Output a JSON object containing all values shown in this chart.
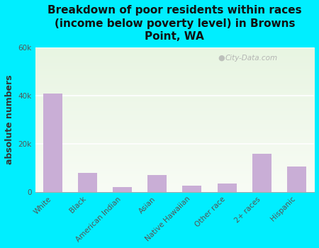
{
  "title": "Breakdown of poor residents within races\n(income below poverty level) in Browns\nPoint, WA",
  "categories": [
    "White",
    "Black",
    "American Indian",
    "Asian",
    "Native Hawaiian",
    "Other race",
    "2+ races",
    "Hispanic"
  ],
  "values": [
    41000,
    8000,
    2000,
    7000,
    2500,
    3500,
    16000,
    10500
  ],
  "bar_color": "#c9aed6",
  "ylabel": "absolute numbers",
  "ylim": [
    0,
    60000
  ],
  "yticks": [
    0,
    20000,
    40000,
    60000
  ],
  "background_color": "#00eeff",
  "plot_bg_top": "#e8f5e2",
  "plot_bg_bottom": "#f8fcf5",
  "watermark": "City-Data.com",
  "title_fontsize": 11,
  "ylabel_fontsize": 9,
  "tick_fontsize": 7.5
}
